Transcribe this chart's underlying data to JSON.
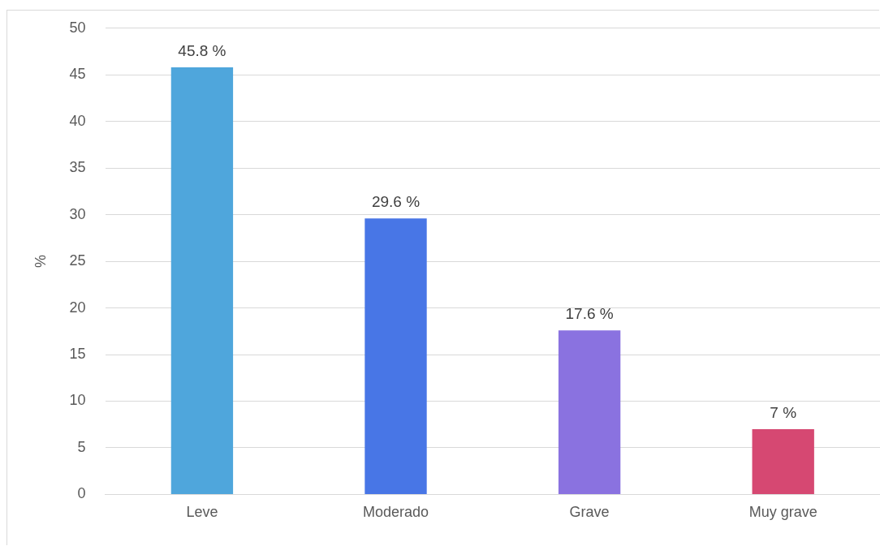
{
  "chart_data": {
    "type": "bar",
    "ylabel": "%",
    "categories": [
      "Leve",
      "Moderado",
      "Grave",
      "Muy grave"
    ],
    "values": [
      45.8,
      29.6,
      17.6,
      7
    ],
    "colors": [
      "#4fa6dc",
      "#4876e6",
      "#8a72e0",
      "#d64872"
    ],
    "value_labels": [
      "45.8 %",
      "29.6 %",
      "17.6 %",
      "7 %"
    ],
    "ylim": [
      0,
      50
    ],
    "yticks": [
      0,
      5,
      10,
      15,
      20,
      25,
      30,
      35,
      40,
      45,
      50
    ],
    "grid": "y",
    "legend": false
  }
}
